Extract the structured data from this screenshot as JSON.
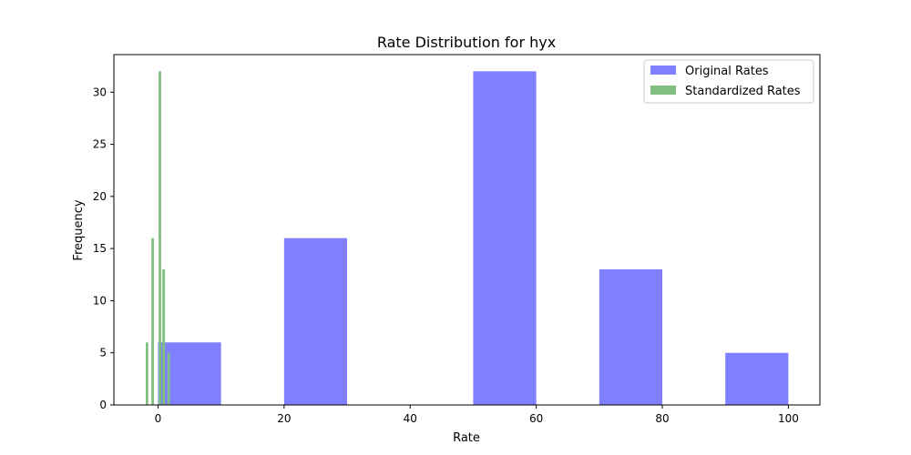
{
  "chart_data": {
    "type": "bar",
    "title": "Rate Distribution for hyx",
    "xlabel": "Rate",
    "ylabel": "Frequency",
    "xlim": [
      -7,
      105
    ],
    "ylim": [
      0,
      33.6
    ],
    "x_ticks": [
      0,
      20,
      40,
      60,
      80,
      100
    ],
    "y_ticks": [
      0,
      5,
      10,
      15,
      20,
      25,
      30
    ],
    "grid": false,
    "legend_position": "top-right",
    "series": [
      {
        "name": "Original Rates",
        "color": "#8080ff",
        "bins": [
          {
            "x0": 0,
            "x1": 10,
            "count": 6
          },
          {
            "x0": 20,
            "x1": 30,
            "count": 16
          },
          {
            "x0": 50,
            "x1": 60,
            "count": 32
          },
          {
            "x0": 70,
            "x1": 80,
            "count": 13
          },
          {
            "x0": 90,
            "x1": 100,
            "count": 5
          }
        ]
      },
      {
        "name": "Standardized Rates",
        "color": "#80bf80",
        "bins": [
          {
            "x0": -1.95,
            "x1": -1.55,
            "count": 6
          },
          {
            "x0": -1.05,
            "x1": -0.65,
            "count": 16
          },
          {
            "x0": 0.1,
            "x1": 0.5,
            "count": 32
          },
          {
            "x0": 0.7,
            "x1": 1.1,
            "count": 13
          },
          {
            "x0": 1.5,
            "x1": 1.9,
            "count": 5
          }
        ]
      }
    ]
  }
}
